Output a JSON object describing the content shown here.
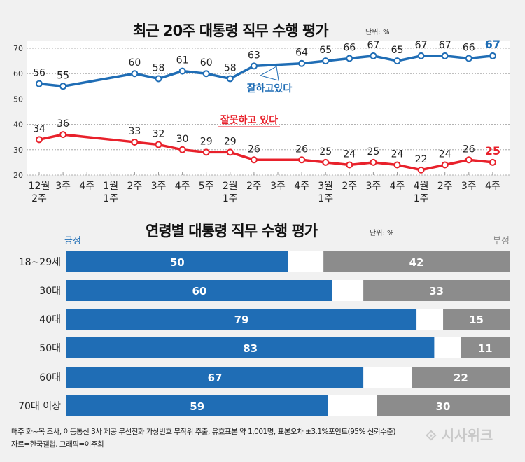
{
  "chart_data": [
    {
      "type": "line",
      "title": "최근 20주 대통령 직무 수행 평가",
      "unit": "단위: %",
      "categories": [
        "12월\n2주",
        "3주",
        "4주",
        "1월\n1주",
        "2주",
        "3주",
        "4주",
        "5주",
        "2월\n1주",
        "2주",
        "3주",
        "4주",
        "3월\n1주",
        "2주",
        "3주",
        "4주",
        "4월\n1주",
        "2주",
        "3주",
        "4주"
      ],
      "ylim": [
        20,
        70
      ],
      "yticks": [
        20,
        30,
        40,
        50,
        60,
        70
      ],
      "series": [
        {
          "name": "잘하고있다",
          "color": "#1f6db5",
          "values": [
            56,
            55,
            null,
            null,
            60,
            58,
            61,
            60,
            58,
            63,
            null,
            64,
            65,
            66,
            67,
            65,
            67,
            67,
            66,
            67
          ]
        },
        {
          "name": "잘못하고 있다",
          "color": "#e8212b",
          "values": [
            34,
            36,
            null,
            null,
            33,
            32,
            30,
            29,
            29,
            26,
            null,
            26,
            25,
            24,
            25,
            24,
            22,
            24,
            26,
            25
          ]
        }
      ]
    },
    {
      "type": "bar",
      "title": "연령별 대통령 직무 수행 평가",
      "unit": "단위: %",
      "legend_left": "긍정",
      "legend_right": "부정",
      "categories": [
        "18~29세",
        "30대",
        "40대",
        "50대",
        "60대",
        "70대 이상"
      ],
      "series": [
        {
          "name": "긍정",
          "color": "#1f6db5",
          "values": [
            50,
            60,
            79,
            83,
            67,
            59
          ]
        },
        {
          "name": "부정",
          "color": "#8c8c8c",
          "values": [
            42,
            33,
            15,
            11,
            22,
            30
          ]
        }
      ]
    }
  ],
  "footnote": [
    "매주 화~목 조사, 이동통신 3사 제공 무선전화 가상번호 무작위 추출, 유효표본 약 1,001명, 표본오차 ±3.1%포인트(95% 신뢰수준)",
    "자료=한국갤럽, 그래픽=이주희"
  ],
  "logo": "시사위크"
}
